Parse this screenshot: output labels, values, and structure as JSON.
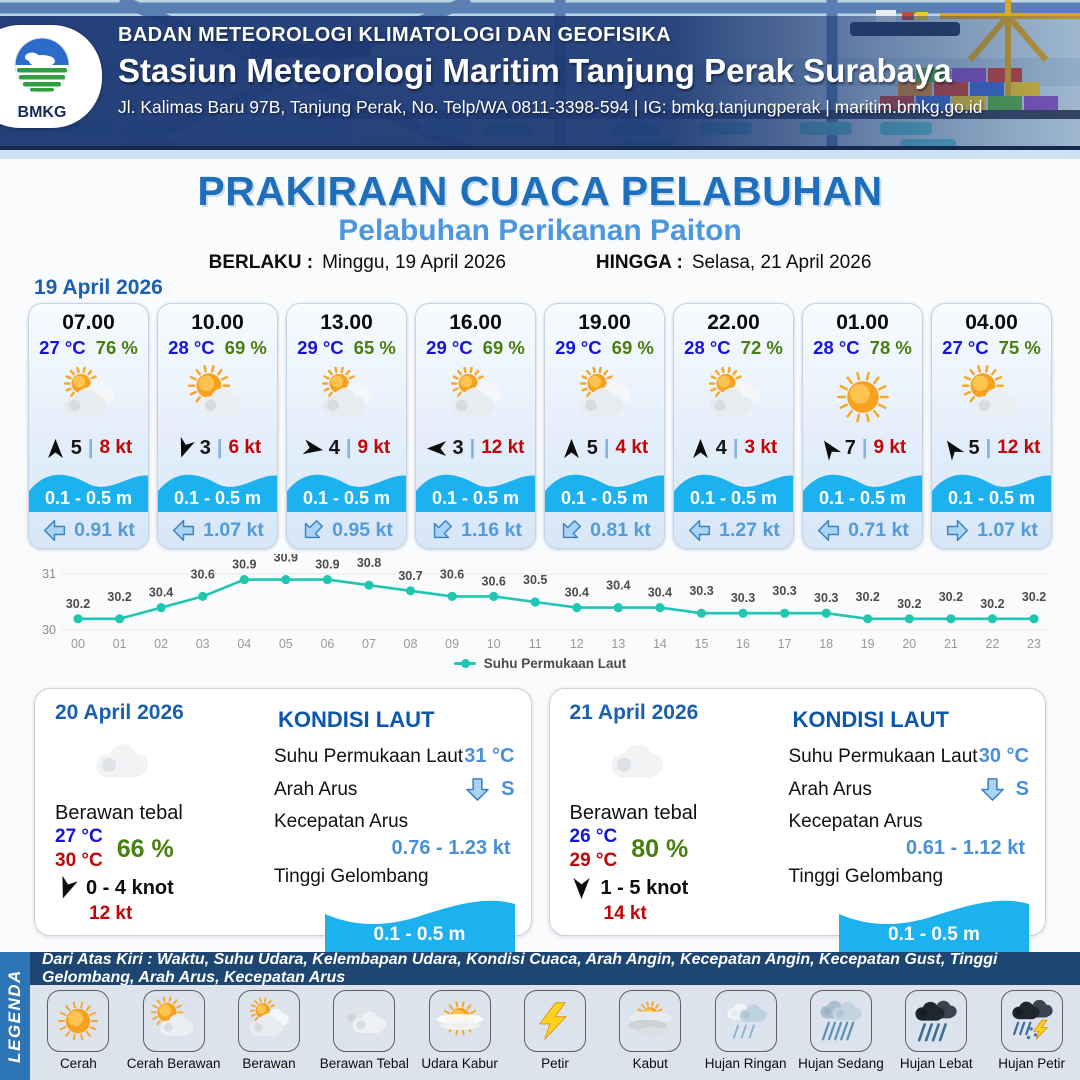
{
  "header": {
    "logo_label": "BMKG",
    "agency": "BADAN METEOROLOGI KLIMATOLOGI DAN GEOFISIKA",
    "station": "Stasiun Meteorologi Maritim Tanjung Perak Surabaya",
    "address": "Jl. Kalimas Baru 97B, Tanjung Perak, No. Telp/WA 0811-3398-594 | IG: bmkg.tanjungperak | maritim.bmkg.go.id"
  },
  "title": {
    "main": "PRAKIRAAN CUACA PELABUHAN",
    "sub": "Pelabuhan Perikanan Paiton"
  },
  "validity": {
    "berlaku_label": "BERLAKU :",
    "berlaku_value": "Minggu, 19 April 2026",
    "hingga_label": "HINGGA :",
    "hingga_value": "Selasa, 21 April 2026"
  },
  "forecast_date": "19 April 2026",
  "hourly_cards": [
    {
      "time": "07.00",
      "temp": "27 °C",
      "humidity": "76 %",
      "icon": "berawan",
      "wind_deg": 0,
      "wind": "5",
      "sep": "|",
      "gust": "8 kt",
      "wave": "0.1 - 0.5 m",
      "cur_deg": 270,
      "current": "0.91 kt"
    },
    {
      "time": "10.00",
      "temp": "28 °C",
      "humidity": "69 %",
      "icon": "cerah-berawan",
      "wind_deg": 200,
      "wind": "3",
      "sep": "|",
      "gust": "6 kt",
      "wave": "0.1 - 0.5 m",
      "cur_deg": 270,
      "current": "1.07 kt"
    },
    {
      "time": "13.00",
      "temp": "29 °C",
      "humidity": "65 %",
      "icon": "berawan",
      "wind_deg": 100,
      "wind": "4",
      "sep": "|",
      "gust": "9 kt",
      "wave": "0.1 - 0.5 m",
      "cur_deg": 225,
      "current": "0.95 kt"
    },
    {
      "time": "16.00",
      "temp": "29 °C",
      "humidity": "69 %",
      "icon": "berawan",
      "wind_deg": 270,
      "wind": "3",
      "sep": "|",
      "gust": "12 kt",
      "wave": "0.1 - 0.5 m",
      "cur_deg": 225,
      "current": "1.16 kt"
    },
    {
      "time": "19.00",
      "temp": "29 °C",
      "humidity": "69 %",
      "icon": "berawan",
      "wind_deg": 0,
      "wind": "5",
      "sep": "|",
      "gust": "4 kt",
      "wave": "0.1 - 0.5 m",
      "cur_deg": 225,
      "current": "0.81 kt"
    },
    {
      "time": "22.00",
      "temp": "28 °C",
      "humidity": "72 %",
      "icon": "berawan",
      "wind_deg": 0,
      "wind": "4",
      "sep": "|",
      "gust": "3 kt",
      "wave": "0.1 - 0.5 m",
      "cur_deg": 270,
      "current": "1.27 kt"
    },
    {
      "time": "01.00",
      "temp": "28 °C",
      "humidity": "78 %",
      "icon": "cerah",
      "wind_deg": 325,
      "wind": "7",
      "sep": "|",
      "gust": "9 kt",
      "wave": "0.1 - 0.5 m",
      "cur_deg": 270,
      "current": "0.71 kt"
    },
    {
      "time": "04.00",
      "temp": "27 °C",
      "humidity": "75 %",
      "icon": "cerah-berawan",
      "wind_deg": 325,
      "wind": "5",
      "sep": "|",
      "gust": "12 kt",
      "wave": "0.1 - 0.5 m",
      "cur_deg": 90,
      "current": "1.07 kt"
    }
  ],
  "chart_data": {
    "type": "line",
    "series_label": "Suhu Permukaan Laut",
    "categories": [
      "00",
      "01",
      "02",
      "03",
      "04",
      "05",
      "06",
      "07",
      "08",
      "09",
      "10",
      "11",
      "12",
      "13",
      "14",
      "15",
      "16",
      "17",
      "18",
      "19",
      "20",
      "21",
      "22",
      "23"
    ],
    "values": [
      30.2,
      30.2,
      30.4,
      30.6,
      30.9,
      30.9,
      30.9,
      30.8,
      30.7,
      30.6,
      30.6,
      30.5,
      30.4,
      30.4,
      30.4,
      30.3,
      30.3,
      30.3,
      30.3,
      30.2,
      30.2,
      30.2,
      30.2,
      30.2
    ],
    "ylim": [
      30,
      31
    ],
    "line_color": "#1fc7b2",
    "grid": true,
    "legend_position": "bottom"
  },
  "daily_panels": [
    {
      "date": "20 April 2026",
      "icon": "cloud",
      "condition": "Berawan tebal",
      "temp_min": "27 °C",
      "temp_max": "30 °C",
      "humidity": "66 %",
      "wind_deg": 200,
      "wind_range": "0  - 4 knot",
      "gust": "12 kt",
      "sea": {
        "title": "KONDISI LAUT",
        "sst_label": "Suhu Permukaan Laut",
        "sst": "31 °C",
        "dir_label": "Arah Arus",
        "dir_deg": 180,
        "dir": "S",
        "spd_label": "Kecepatan Arus",
        "spd": "0.76  - 1.23 kt",
        "wave_label": "Tinggi Gelombang",
        "wave": "0.1 - 0.5 m"
      }
    },
    {
      "date": "21 April 2026",
      "icon": "cloud",
      "condition": "Berawan tebal",
      "temp_min": "26 °C",
      "temp_max": "29 °C",
      "humidity": "80 %",
      "wind_deg": 180,
      "wind_range": "1  - 5 knot",
      "gust": "14 kt",
      "sea": {
        "title": "KONDISI LAUT",
        "sst_label": "Suhu Permukaan Laut",
        "sst": "30 °C",
        "dir_label": "Arah Arus",
        "dir_deg": 180,
        "dir": "S",
        "spd_label": "Kecepatan Arus",
        "spd": "0.61 - 1.12 kt",
        "wave_label": "Tinggi Gelombang",
        "wave": "0.1 - 0.5 m"
      }
    }
  ],
  "legend": {
    "title": "LEGENDA",
    "description": "Dari Atas Kiri : Waktu, Suhu Udara, Kelembapan Udara, Kondisi Cuaca, Arah Angin, Kecepatan Angin, Kecepatan Gust, Tinggi Gelombang, Arah Arus, Kecepatan Arus",
    "items": [
      {
        "label": "Cerah",
        "icon": "cerah"
      },
      {
        "label": "Cerah Berawan",
        "icon": "cerah-berawan"
      },
      {
        "label": "Berawan",
        "icon": "berawan"
      },
      {
        "label": "Berawan Tebal",
        "icon": "berawan-tebal"
      },
      {
        "label": "Udara Kabur",
        "icon": "udara-kabur"
      },
      {
        "label": "Petir",
        "icon": "petir"
      },
      {
        "label": "Kabut",
        "icon": "kabut"
      },
      {
        "label": "Hujan Ringan",
        "icon": "hujan-ringan"
      },
      {
        "label": "Hujan Sedang",
        "icon": "hujan-sedang"
      },
      {
        "label": "Hujan Lebat",
        "icon": "hujan-lebat"
      },
      {
        "label": "Hujan Petir",
        "icon": "hujan-petir"
      }
    ]
  },
  "colors": {
    "header_navy": "#1e3a74",
    "title_blue": "#1e6fbb",
    "subtitle_blue": "#4e97de",
    "temp_blue": "#1414dd",
    "humidity_green": "#47800e",
    "gust_red": "#c00606",
    "wave_cyan": "#1cb2f0",
    "current_blue": "#549bd8",
    "chart_teal": "#1fc7b2",
    "legend_bar_navy": "#1d4673",
    "legend_strip_blue": "#2e75b6"
  }
}
